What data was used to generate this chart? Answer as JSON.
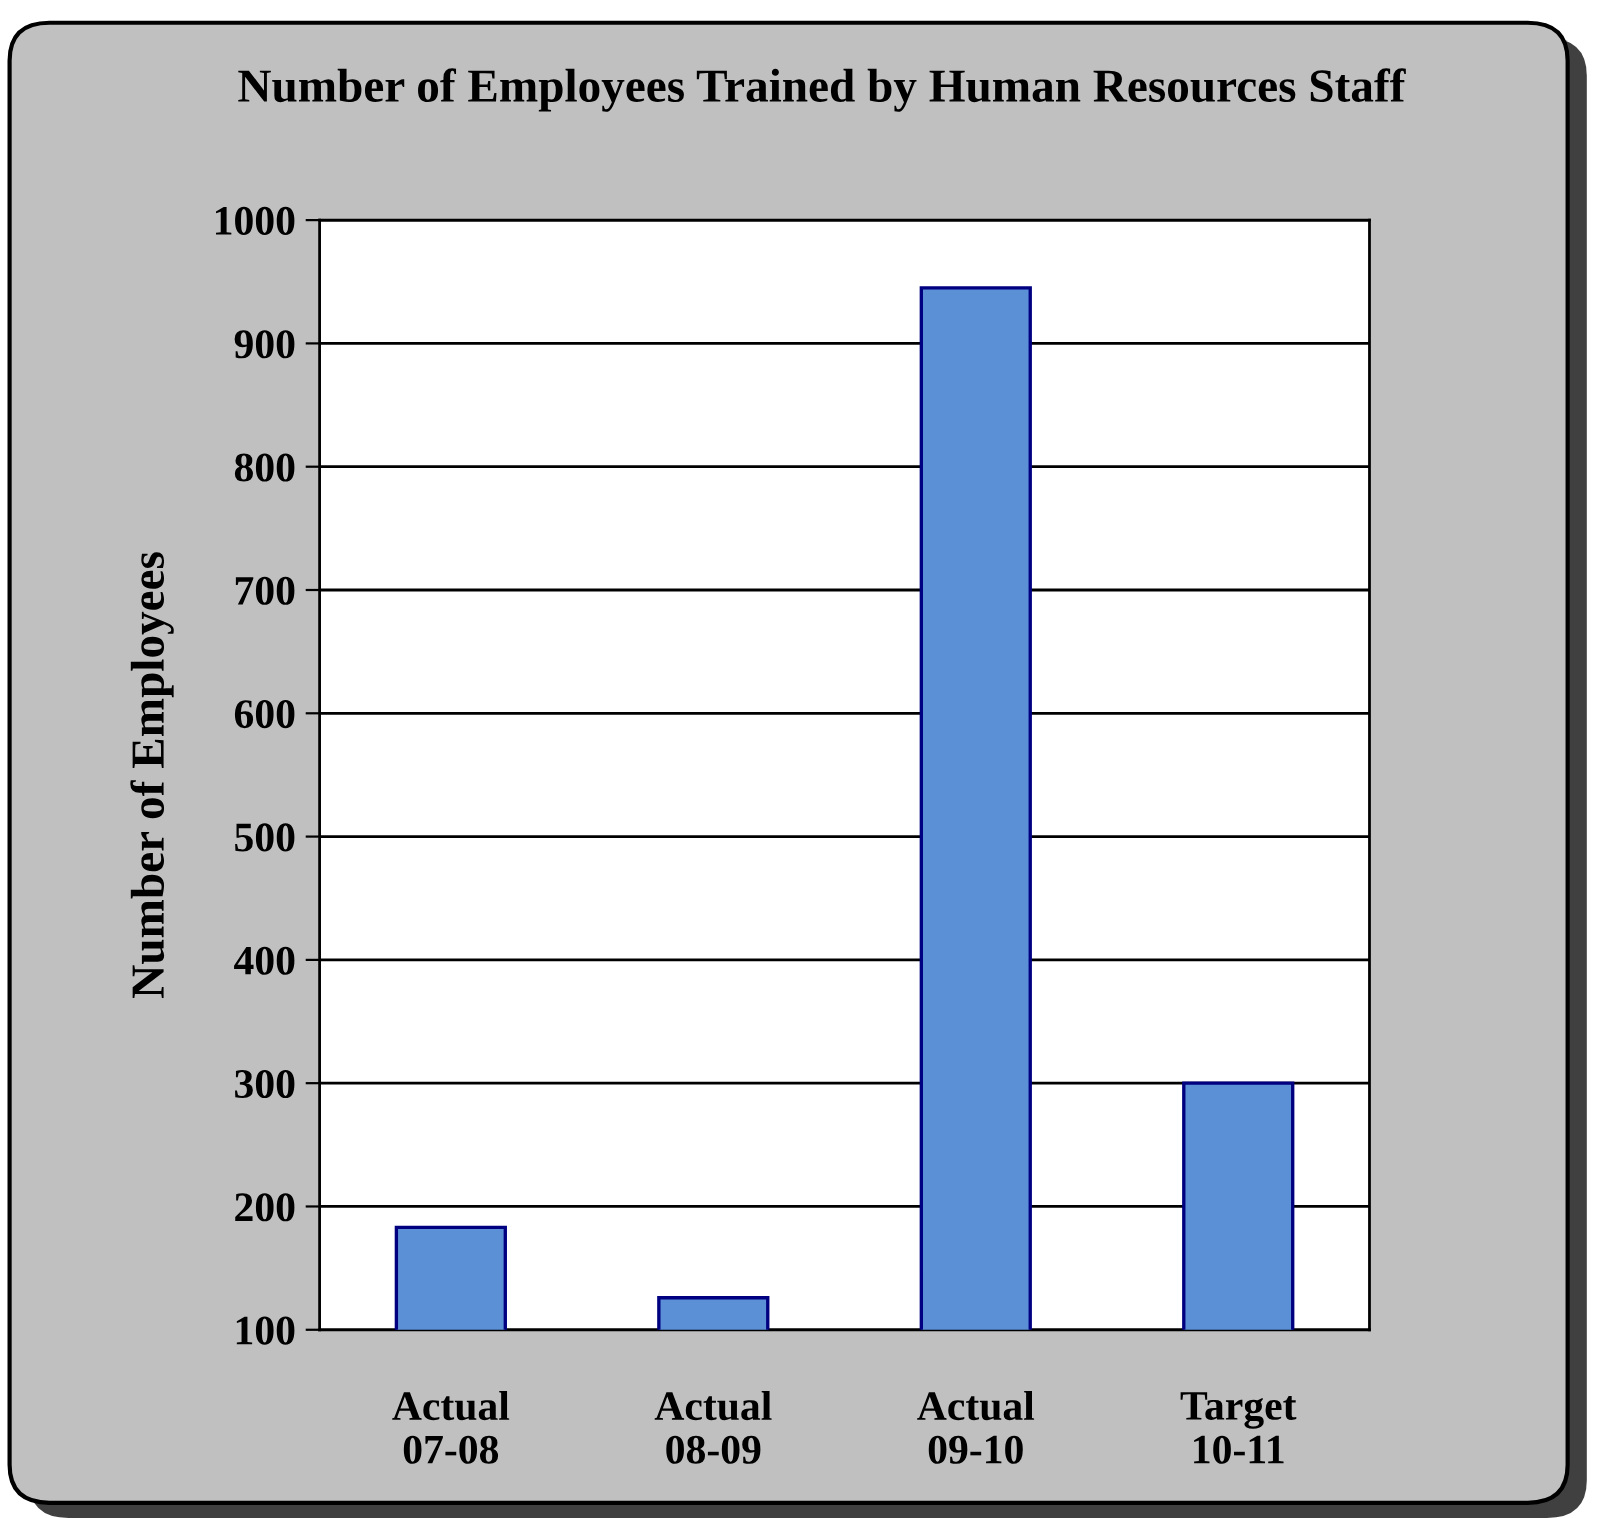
{
  "chart_data": {
    "type": "bar",
    "title": "Number of Employees Trained by Human Resources Staff",
    "ylabel": "Number of Employees",
    "categories": [
      "Actual\n07-08",
      "Actual\n08-09",
      "Actual\n09-10",
      "Target\n10-11"
    ],
    "values": [
      183,
      126,
      945,
      300
    ],
    "color": "#5b8fd6",
    "ylim": [
      100,
      1000
    ],
    "yticks": [
      100,
      200,
      300,
      400,
      500,
      600,
      700,
      800,
      900,
      1000
    ],
    "grid": "y",
    "legend": false
  }
}
